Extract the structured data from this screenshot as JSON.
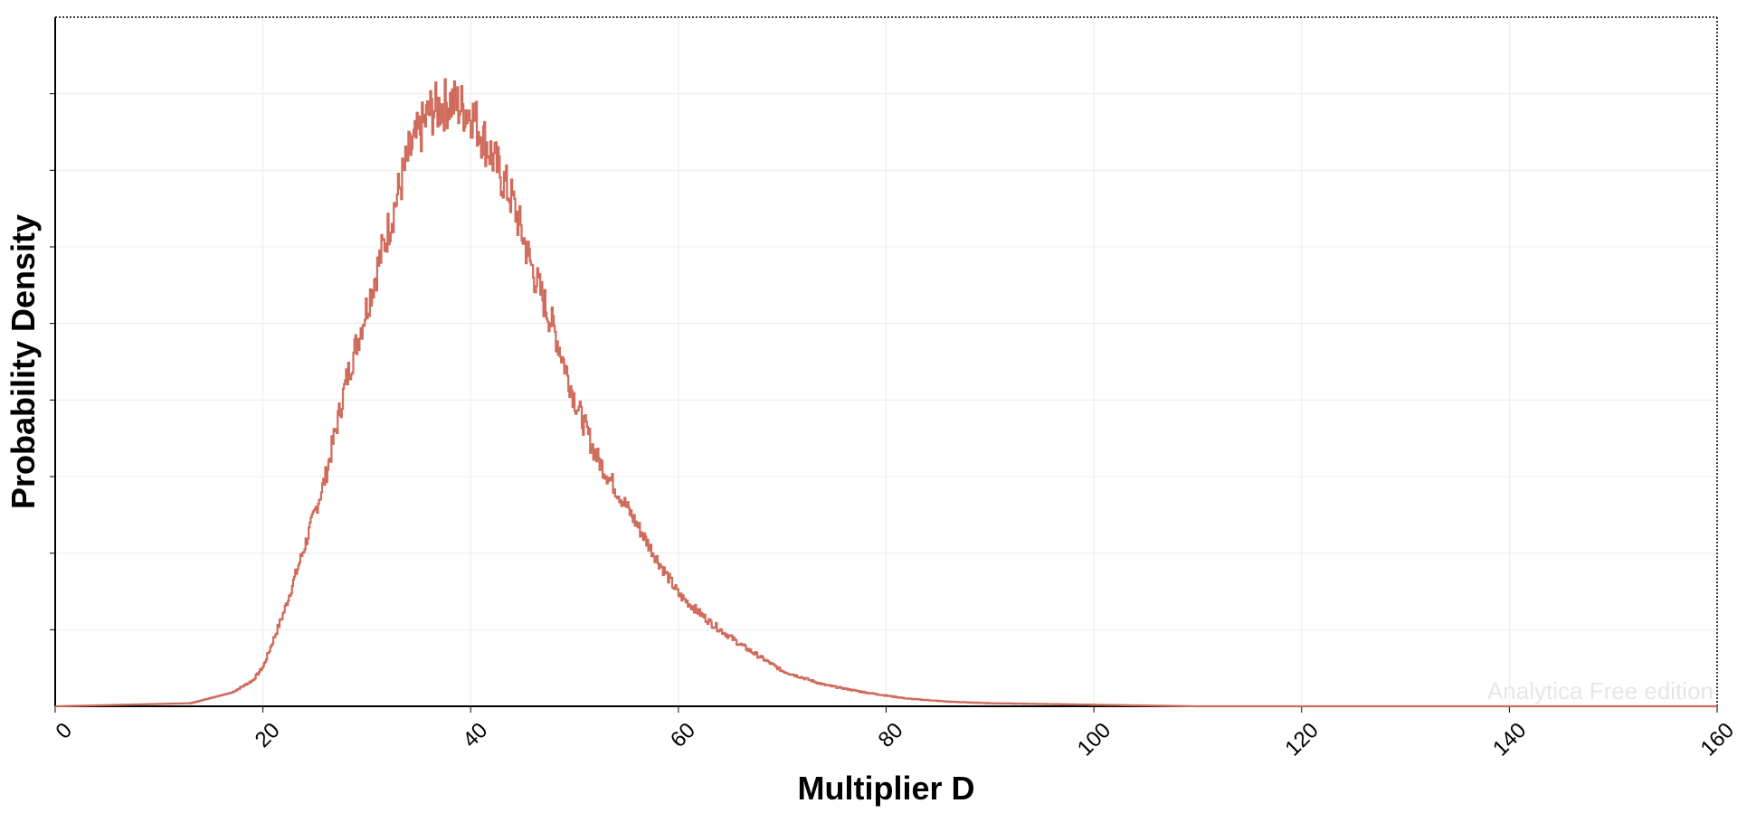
{
  "chart_data": {
    "type": "line",
    "title": "",
    "xlabel": "Multiplier D",
    "ylabel": "Probability Density",
    "xlim": [
      0,
      160
    ],
    "ylim": [
      0,
      0.045
    ],
    "xticks": [
      "0",
      "20",
      "40",
      "60",
      "80",
      "100",
      "120",
      "140",
      "160"
    ],
    "y_tick_labels_shown": false,
    "grid": true,
    "watermark": "Analytica Free edition",
    "line_color": "#cf6b5b",
    "series": [
      {
        "x": [
          0,
          13,
          17,
          19,
          20,
          22,
          24,
          26,
          28,
          30,
          32,
          34,
          36,
          38,
          40,
          42,
          44,
          46,
          48,
          50,
          52,
          55,
          58,
          60,
          63,
          66,
          70,
          74,
          78,
          82,
          86,
          90,
          100,
          110,
          160
        ],
        "y": [
          0,
          0.0002,
          0.0009,
          0.0017,
          0.0026,
          0.0062,
          0.0105,
          0.015,
          0.0213,
          0.0262,
          0.0311,
          0.036,
          0.0388,
          0.0395,
          0.0388,
          0.036,
          0.033,
          0.0283,
          0.0246,
          0.02,
          0.0164,
          0.013,
          0.0095,
          0.0073,
          0.0055,
          0.004,
          0.0023,
          0.0014,
          0.0009,
          0.0005,
          0.0003,
          0.0002,
          0.0001,
          0,
          0
        ]
      }
    ]
  }
}
